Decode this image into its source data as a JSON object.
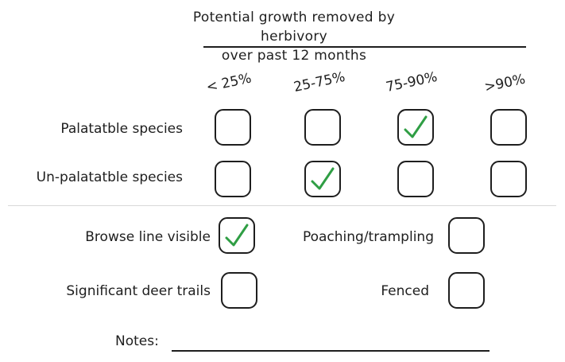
{
  "header": {
    "title_line1": "Potential growth removed by herbivory",
    "title_line2": "over past 12 months"
  },
  "columns": [
    "< 25%",
    "25-75%",
    "75-90%",
    ">90%"
  ],
  "rows": [
    {
      "label": "Palatatble species",
      "checked": [
        false,
        false,
        true,
        false
      ]
    },
    {
      "label": "Un-palatatble species",
      "checked": [
        false,
        true,
        false,
        false
      ]
    }
  ],
  "extras": [
    {
      "label": "Browse line visible",
      "checked": true
    },
    {
      "label": "Poaching/trampling",
      "checked": false
    },
    {
      "label": "Significant deer trails",
      "checked": false
    },
    {
      "label": "Fenced",
      "checked": false
    }
  ],
  "notes": {
    "label": "Notes:",
    "value": ""
  },
  "colors": {
    "check": "#2f9e44",
    "ink": "#1e1e1e"
  }
}
